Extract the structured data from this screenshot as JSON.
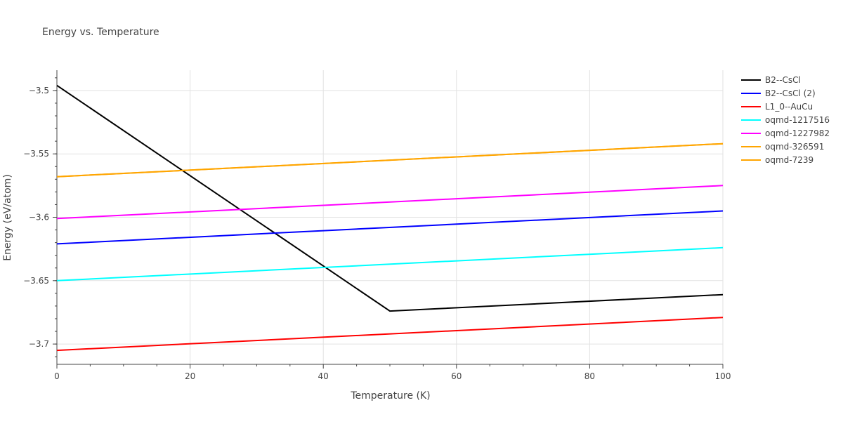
{
  "chart_data": {
    "type": "line",
    "title": "Energy vs. Temperature",
    "xlabel": "Temperature (K)",
    "ylabel": "Energy (eV/atom)",
    "xlim": [
      0,
      100
    ],
    "ylim": [
      -3.716,
      -3.484
    ],
    "x_ticks": [
      0,
      20,
      40,
      60,
      80,
      100
    ],
    "x_tick_labels": [
      "0",
      "20",
      "40",
      "60",
      "80",
      "100"
    ],
    "y_ticks": [
      -3.5,
      -3.55,
      -3.6,
      -3.65,
      -3.7
    ],
    "y_tick_labels": [
      "−3.5",
      "−3.55",
      "−3.6",
      "−3.65",
      "−3.7"
    ],
    "grid": true,
    "legend_position": "right",
    "series": [
      {
        "name": "B2--CsCl",
        "color": "#000000",
        "x": [
          0,
          50,
          100
        ],
        "y": [
          -3.496,
          -3.674,
          -3.661
        ]
      },
      {
        "name": "B2--CsCl (2)",
        "color": "#0000ff",
        "x": [
          0,
          100
        ],
        "y": [
          -3.621,
          -3.595
        ]
      },
      {
        "name": "L1_0--AuCu",
        "color": "#ff0000",
        "x": [
          0,
          100
        ],
        "y": [
          -3.705,
          -3.679
        ]
      },
      {
        "name": "oqmd-1217516",
        "color": "#00ffff",
        "x": [
          0,
          100
        ],
        "y": [
          -3.65,
          -3.624
        ]
      },
      {
        "name": "oqmd-1227982",
        "color": "#ff00ff",
        "x": [
          0,
          100
        ],
        "y": [
          -3.601,
          -3.575
        ]
      },
      {
        "name": "oqmd-326591",
        "color": "#ffa500",
        "x": [
          0,
          100
        ],
        "y": [
          -3.568,
          -3.542
        ]
      },
      {
        "name": "oqmd-7239",
        "color": "#ffa500",
        "x": [
          0,
          100
        ],
        "y": [
          -3.568,
          -3.542
        ]
      }
    ]
  }
}
